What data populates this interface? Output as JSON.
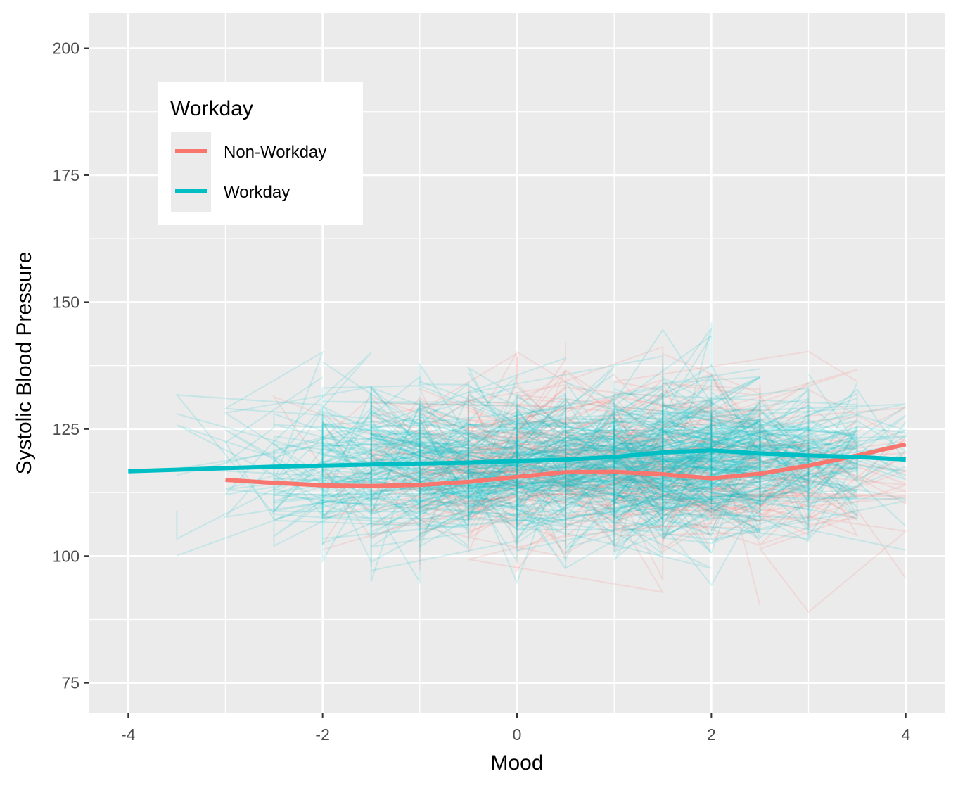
{
  "chart_data": {
    "type": "line",
    "title": "",
    "xlabel": "Mood",
    "ylabel": "Systolic Blood Pressure",
    "xlim": [
      -4.4,
      4.4
    ],
    "ylim": [
      69,
      207
    ],
    "x_ticks": [
      -4,
      -2,
      0,
      2,
      4
    ],
    "x_tick_labels": [
      "-4",
      "-2",
      "0",
      "2",
      "4"
    ],
    "y_ticks": [
      75,
      100,
      125,
      150,
      175,
      200
    ],
    "y_tick_labels": [
      "75",
      "100",
      "125",
      "150",
      "175",
      "200"
    ],
    "grid": true,
    "legend": {
      "title": "Workday",
      "position": "top-left",
      "entries": [
        {
          "label": "Non-Workday",
          "color": "#F8766D"
        },
        {
          "label": "Workday",
          "color": "#00BFC4"
        }
      ]
    },
    "series": [
      {
        "name": "Non-Workday",
        "color": "#F8766D",
        "x": [
          -3,
          -2.5,
          -2,
          -1.5,
          -1,
          -0.5,
          0,
          0.5,
          1,
          1.5,
          2,
          2.5,
          3,
          3.5,
          4
        ],
        "values": [
          115.0,
          114.4,
          113.9,
          113.8,
          114.0,
          114.6,
          115.6,
          116.5,
          116.6,
          116.1,
          115.3,
          116.2,
          117.8,
          119.8,
          122.0
        ]
      },
      {
        "name": "Workday",
        "color": "#00BFC4",
        "x": [
          -4,
          -3.5,
          -3,
          -2.5,
          -2,
          -1.5,
          -1,
          -0.5,
          0,
          0.5,
          1,
          1.5,
          2,
          2.5,
          3,
          3.5,
          4
        ],
        "values": [
          116.7,
          117.0,
          117.3,
          117.6,
          117.8,
          118.0,
          118.2,
          118.4,
          118.7,
          119.0,
          119.5,
          120.4,
          120.8,
          120.2,
          119.8,
          119.5,
          119.0
        ]
      }
    ],
    "raw_observations": "many per-participant traces of daily systolic blood pressure vs mood, drawn faintly in both series colors"
  }
}
